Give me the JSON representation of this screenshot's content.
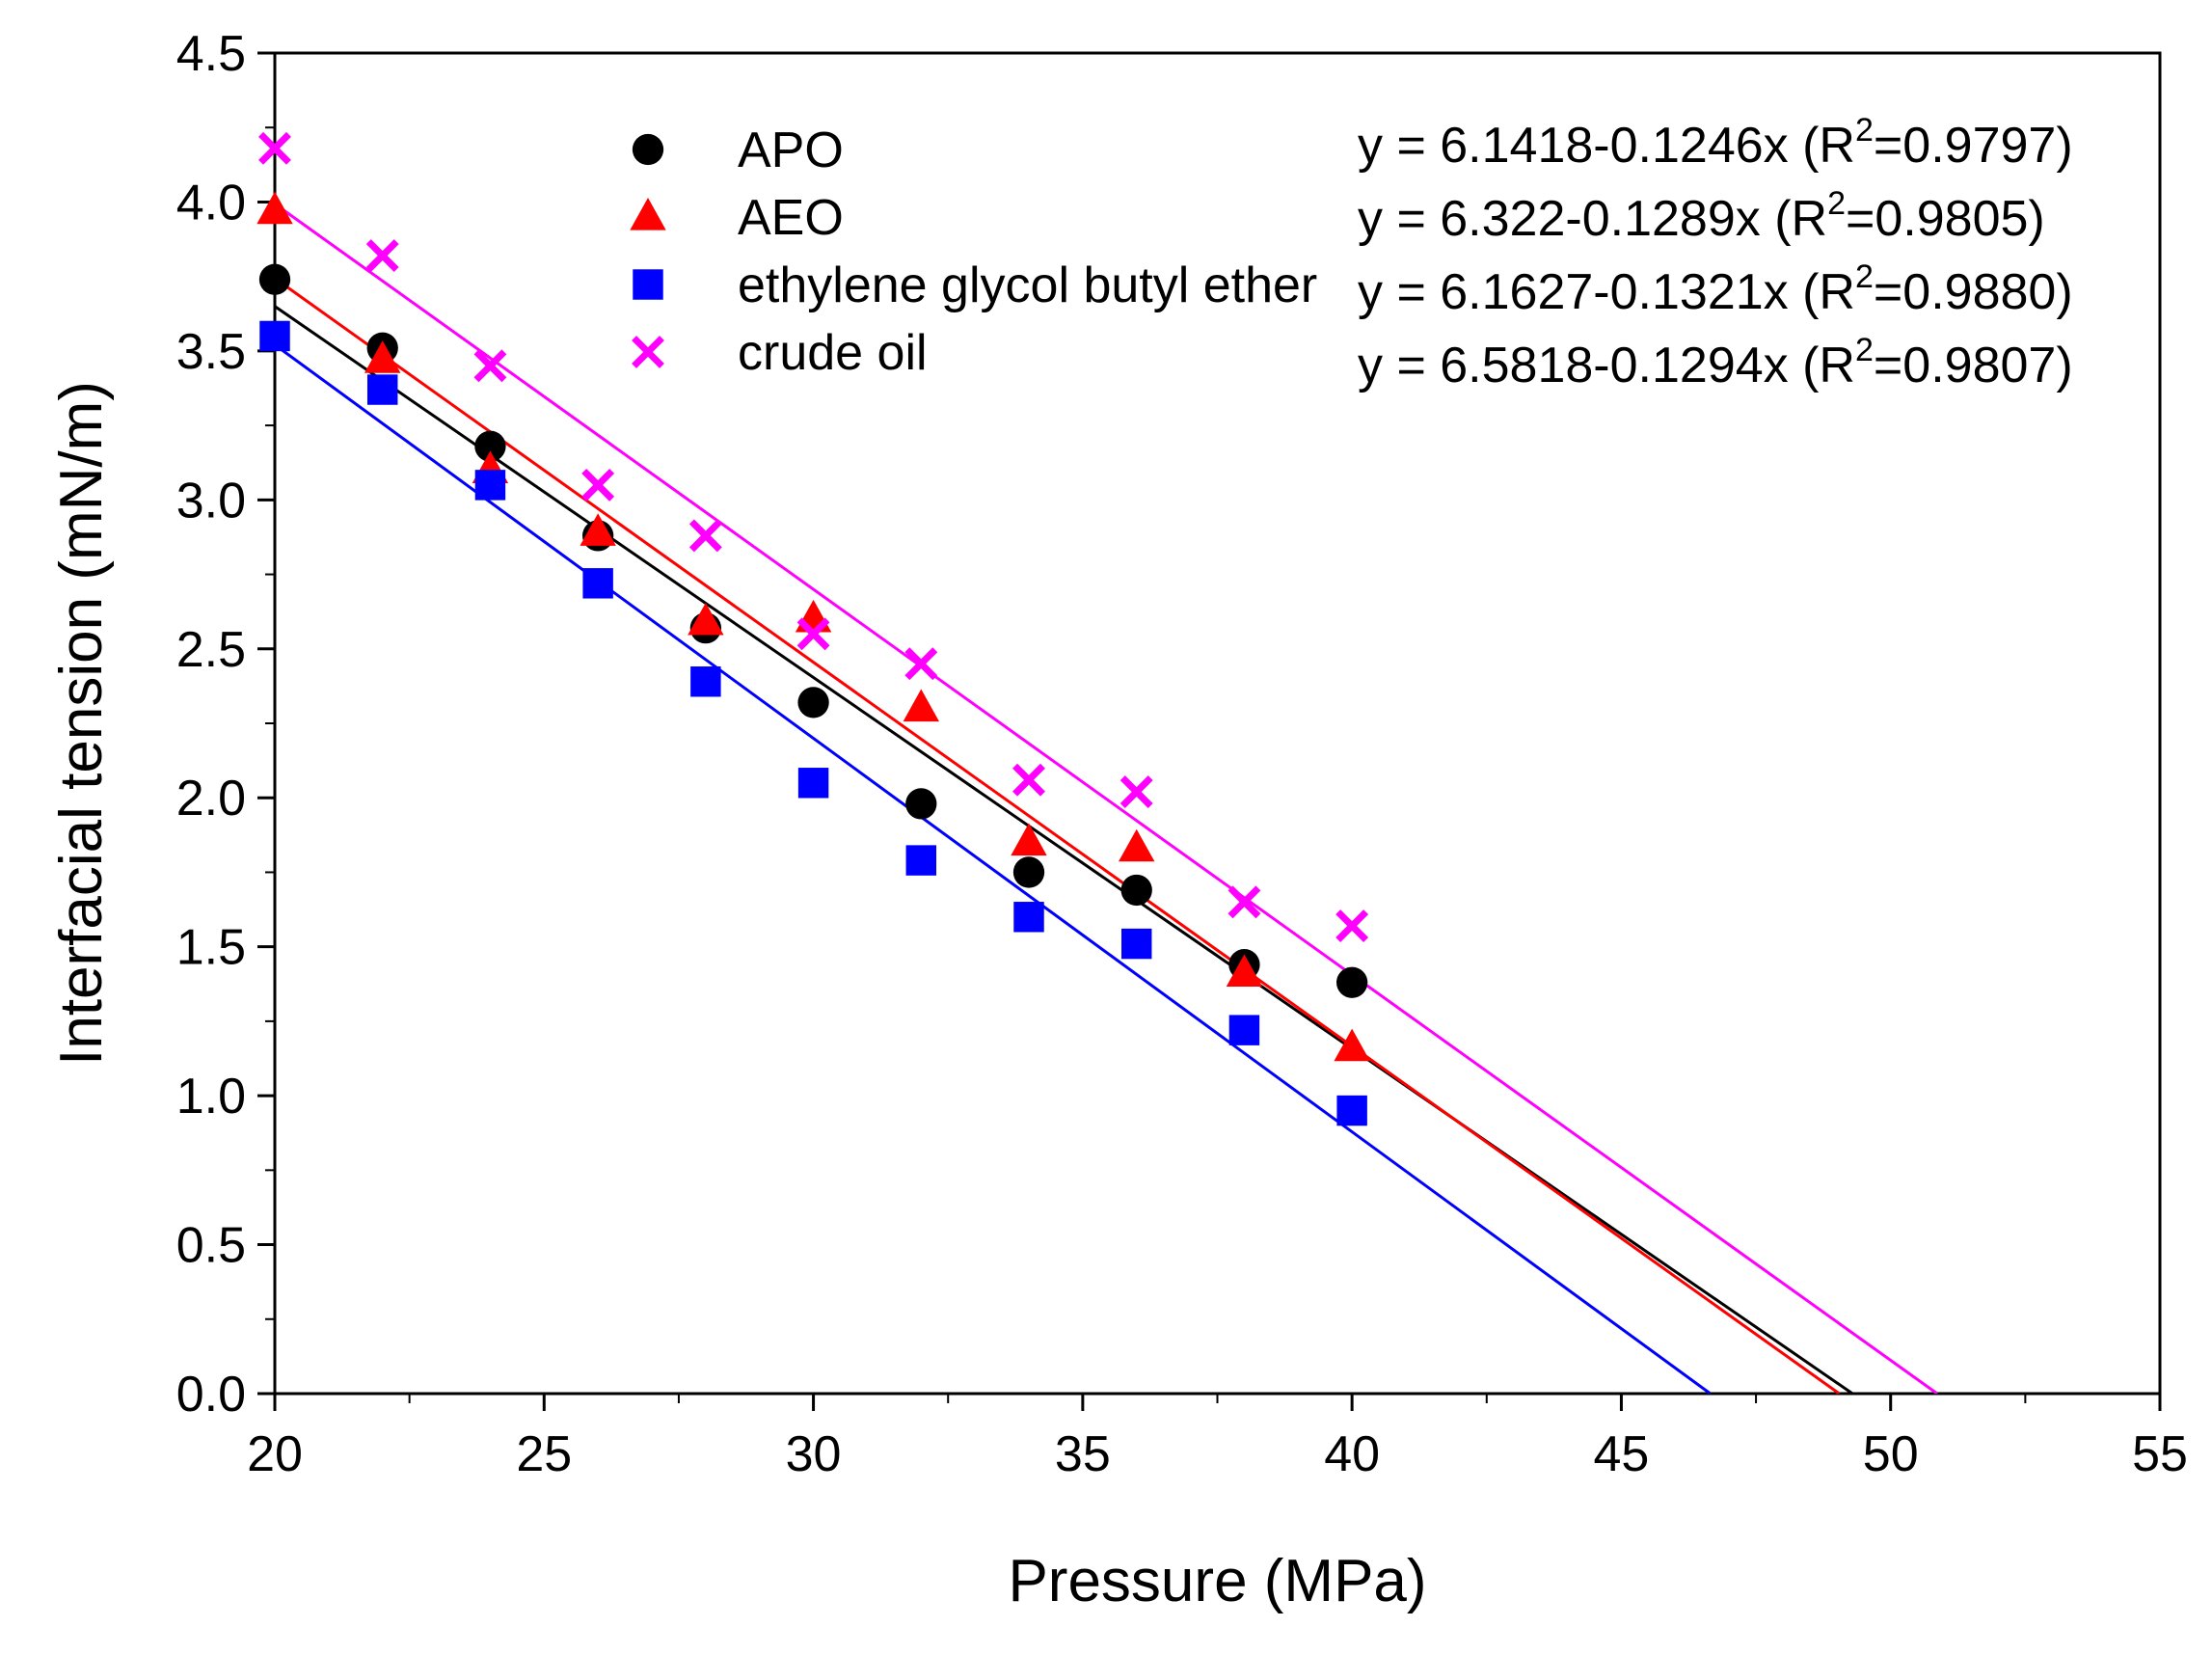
{
  "chart_data": {
    "type": "scatter",
    "title": "",
    "xlabel": "Pressure (MPa)",
    "ylabel": "Interfacial tension (mN/m)",
    "xlim": [
      20,
      55
    ],
    "ylim": [
      0.0,
      4.5
    ],
    "xticks": [
      "20",
      "25",
      "30",
      "35",
      "40",
      "45",
      "50",
      "55"
    ],
    "yticks": [
      "0.0",
      "0.5",
      "1.0",
      "1.5",
      "2.0",
      "2.5",
      "3.0",
      "3.5",
      "4.0",
      "4.5"
    ],
    "grid": false,
    "legend_position": "top-left",
    "series": [
      {
        "name": "APO",
        "marker": "circle",
        "color": "#000000",
        "x": [
          20,
          22,
          24,
          26,
          28,
          30,
          32,
          34,
          36,
          38,
          40
        ],
        "y": [
          3.74,
          3.51,
          3.18,
          2.88,
          2.57,
          2.32,
          1.98,
          1.75,
          1.69,
          1.44,
          1.38
        ],
        "fit": {
          "intercept": 6.1418,
          "slope": -0.1246,
          "color": "#000000"
        },
        "equation": {
          "prefix": "y = 6.1418-0.1246x (R",
          "sup": "2",
          "suffix": "=0.9797)"
        }
      },
      {
        "name": "AEO",
        "marker": "triangle",
        "color": "#ff0000",
        "x": [
          20,
          22,
          24,
          26,
          28,
          30,
          32,
          34,
          36,
          38,
          40
        ],
        "y": [
          3.97,
          3.47,
          3.1,
          2.89,
          2.59,
          2.6,
          2.3,
          1.85,
          1.83,
          1.41,
          1.16
        ],
        "fit": {
          "intercept": 6.322,
          "slope": -0.1289,
          "color": "#ff0000"
        },
        "equation": {
          "prefix": "y = 6.322-0.1289x (R",
          "sup": "2",
          "suffix": "=0.9805)"
        }
      },
      {
        "name": "ethylene glycol butyl ether",
        "marker": "square",
        "color": "#0000ff",
        "x": [
          20,
          22,
          24,
          26,
          28,
          30,
          32,
          34,
          36,
          38,
          40
        ],
        "y": [
          3.55,
          3.37,
          3.05,
          2.72,
          2.39,
          2.05,
          1.79,
          1.6,
          1.51,
          1.22,
          0.95
        ],
        "fit": {
          "intercept": 6.1627,
          "slope": -0.1321,
          "color": "#0000ff"
        },
        "equation": {
          "prefix": "y = 6.1627-0.1321x (R",
          "sup": "2",
          "suffix": "=0.9880)"
        }
      },
      {
        "name": "crude oil",
        "marker": "x",
        "color": "#ff00ff",
        "x": [
          20,
          22,
          24,
          26,
          28,
          30,
          32,
          34,
          36,
          38,
          40
        ],
        "y": [
          4.18,
          3.82,
          3.45,
          3.05,
          2.88,
          2.55,
          2.45,
          2.06,
          2.02,
          1.65,
          1.57
        ],
        "fit": {
          "intercept": 6.5818,
          "slope": -0.1294,
          "color": "#ff00ff"
        },
        "equation": {
          "prefix": "y = 6.5818-0.1294x (R",
          "sup": "2",
          "suffix": "=0.9807)"
        }
      }
    ]
  }
}
